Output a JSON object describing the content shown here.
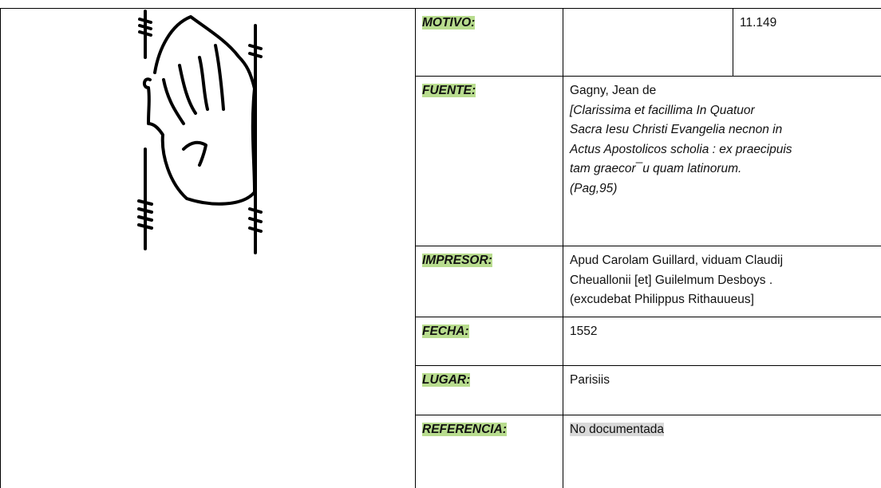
{
  "table": {
    "rows": [
      {
        "label": "MOTIVO:",
        "value": "",
        "number": "11.149"
      },
      {
        "label": "FUENTE:",
        "value": [
          "Gagny, Jean de",
          "[Clarissima et facillima In Quatuor",
          "Sacra Iesu Christi Evangelia necnon in",
          "Actus Apostolicos scholia : ex praecipuis",
          "tam graecor¯u quam latinorum.",
          "(Pag,95)"
        ]
      },
      {
        "label": "IMPRESOR:",
        "value": [
          "Apud Carolam Guillard, viduam Claudij",
          "Cheuallonii [et] Guilelmum Desboys .",
          "(excudebat Philippus Rithauueus]"
        ]
      },
      {
        "label": "FECHA:",
        "value": "1552"
      },
      {
        "label": "LUGAR:",
        "value": "Parisiis"
      },
      {
        "label": "REFERENCIA:",
        "value": "No documentada"
      }
    ]
  }
}
